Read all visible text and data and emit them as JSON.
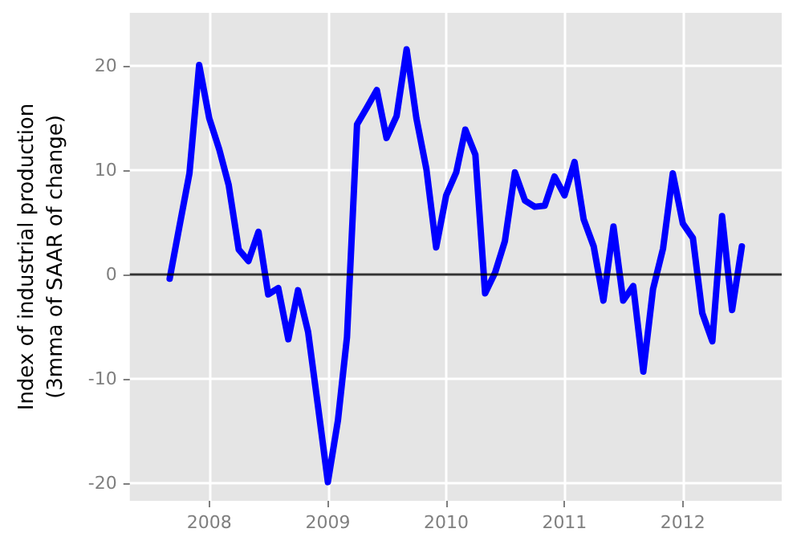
{
  "chart_data": {
    "type": "line",
    "ylabel": "Index of industrial production\n(3mma of SAAR of change)",
    "x": [
      "2007-09",
      "2007-10",
      "2007-11",
      "2007-12",
      "2008-01",
      "2008-02",
      "2008-03",
      "2008-04",
      "2008-05",
      "2008-06",
      "2008-07",
      "2008-08",
      "2008-09",
      "2008-10",
      "2008-11",
      "2008-12",
      "2009-01",
      "2009-02",
      "2009-03",
      "2009-04",
      "2009-05",
      "2009-06",
      "2009-07",
      "2009-08",
      "2009-09",
      "2009-10",
      "2009-11",
      "2009-12",
      "2010-01",
      "2010-02",
      "2010-03",
      "2010-04",
      "2010-05",
      "2010-06",
      "2010-07",
      "2010-08",
      "2010-09",
      "2010-10",
      "2010-11",
      "2010-12",
      "2011-01",
      "2011-02",
      "2011-03",
      "2011-04",
      "2011-05",
      "2011-06",
      "2011-07",
      "2011-08",
      "2011-09",
      "2011-10",
      "2011-11",
      "2011-12",
      "2012-01",
      "2012-02",
      "2012-03",
      "2012-04",
      "2012-05",
      "2012-06",
      "2012-07"
    ],
    "series": [
      {
        "color": "#0000ff",
        "values": [
          -0.4,
          4.6,
          9.7,
          20.1,
          15.0,
          12.0,
          8.6,
          2.4,
          1.3,
          4.1,
          -1.9,
          -1.3,
          -6.2,
          -1.5,
          -5.5,
          -12.5,
          -19.9,
          -14.0,
          -6.0,
          14.4,
          16.0,
          17.7,
          13.1,
          15.2,
          21.6,
          15.0,
          10.1,
          2.6,
          7.6,
          9.8,
          13.9,
          11.5,
          -1.8,
          0.2,
          3.2,
          9.8,
          7.1,
          6.5,
          6.6,
          9.4,
          7.6,
          10.8,
          5.3,
          2.7,
          -2.5,
          4.6,
          -2.5,
          -1.1,
          -9.3,
          -1.4,
          2.5,
          9.7,
          4.9,
          3.5,
          -3.7,
          -6.4,
          5.6,
          -3.4,
          2.7
        ]
      }
    ],
    "xlim": [
      "2007-05",
      "2012-11"
    ],
    "xticks": [
      "2008",
      "2009",
      "2010",
      "2011",
      "2012"
    ],
    "ylim": [
      -21.7,
      25.1
    ],
    "yticks": [
      -20,
      -10,
      0,
      10,
      20
    ],
    "ref_lines": [
      {
        "axis": "y",
        "value": 0,
        "color": "#000000"
      }
    ],
    "grid": true,
    "marker": "none",
    "line_style": "solid"
  }
}
